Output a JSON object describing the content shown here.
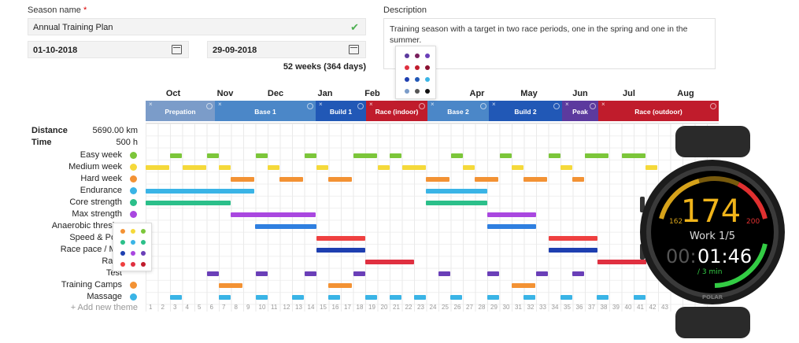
{
  "form": {
    "season_label": "Season name",
    "required_mark": "*",
    "season_value": "Annual Training Plan",
    "start_date": "01-10-2018",
    "end_date": "29-09-2018",
    "duration": "52 weeks (364 days)",
    "description_label": "Description",
    "description_value": "Training season with a target in two race periods, one in the spring and one in the summer."
  },
  "months": [
    "Oct",
    "Nov",
    "Dec",
    "Jan",
    "Feb",
    "Apr",
    "May",
    "Jun",
    "Jul",
    "Aug"
  ],
  "phases": [
    "Prepation",
    "Base 1",
    "Build 1",
    "Race (indoor)",
    "Base 2",
    "Build 2",
    "Peak",
    "Race (outdoor)"
  ],
  "summary": {
    "distance_label": "Distance",
    "distance_value": "5690.00 km",
    "time_label": "Time",
    "time_value": "500 h"
  },
  "rows": [
    "Easy week",
    "Medium week",
    "Hard week",
    "Endurance",
    "Core strength",
    "Max strength",
    "Anaerobic thresho",
    "Speed & Pow",
    "Race pace / MA",
    "Race",
    "Test",
    "Training Camps",
    "Massage"
  ],
  "add_theme": "+ Add new theme",
  "week_numbers": [
    "1",
    "2",
    "3",
    "4",
    "5",
    "6",
    "7",
    "8",
    "9",
    "10",
    "11",
    "12",
    "13",
    "14",
    "15",
    "16",
    "17",
    "18",
    "19",
    "20",
    "21",
    "22",
    "23",
    "24",
    "25",
    "26",
    "27",
    "28",
    "29",
    "30",
    "31",
    "32",
    "33",
    "34",
    "35",
    "36",
    "37",
    "38",
    "39",
    "40",
    "41",
    "42",
    "43"
  ],
  "watch": {
    "heart_rate": "174",
    "low": "162",
    "high": "200",
    "label": "Work 1/5",
    "time_dim": "00:",
    "time": "01:46",
    "sub": "/ 3 min",
    "brand": "POLAR"
  }
}
